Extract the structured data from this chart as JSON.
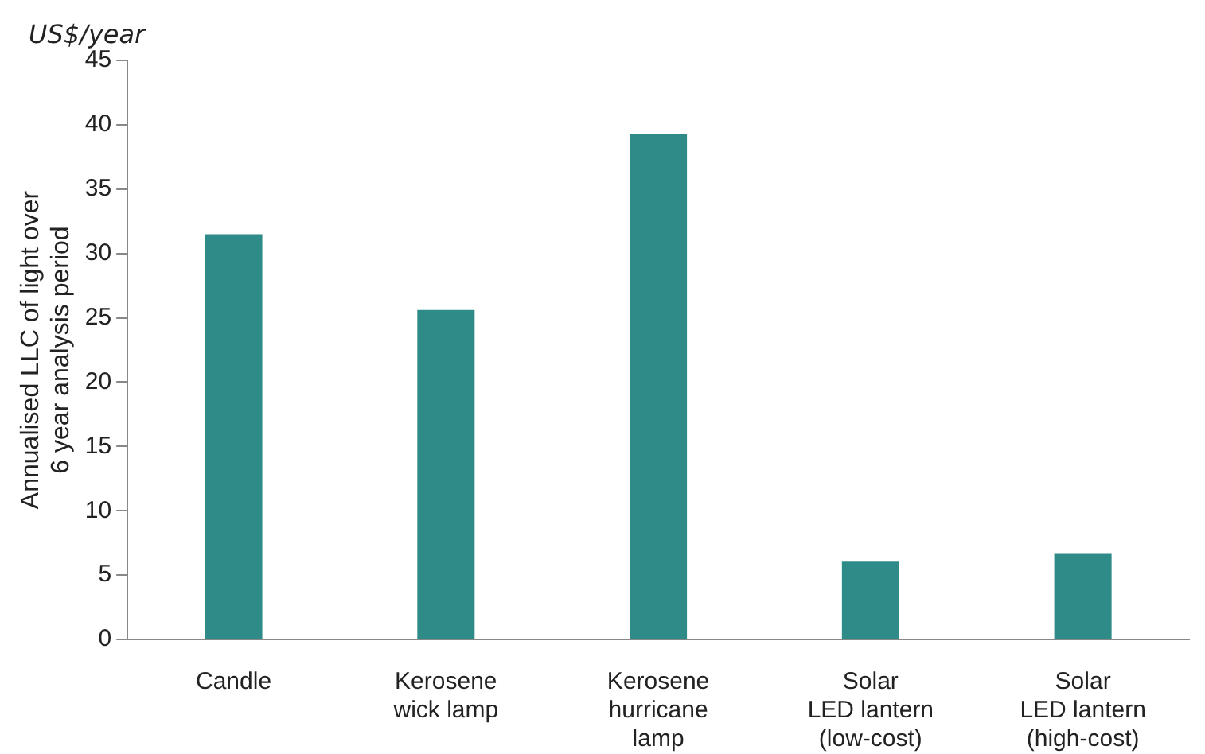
{
  "chart_data": {
    "type": "bar",
    "ylabel": "Annualised LLC of light over\n6 year analysis period",
    "annotations": [
      "US$/year"
    ],
    "categories": [
      "Candle",
      "Kerosene\nwick lamp",
      "Kerosene\nhurricane\nlamp",
      "Solar\nLED lantern\n(low-cost)",
      "Solar\nLED lantern\n(high-cost)"
    ],
    "values": [
      31.5,
      25.6,
      39.3,
      6.1,
      6.7
    ],
    "color": "#2e8b88",
    "ylim": [
      0,
      45
    ],
    "yticks": [
      0,
      5,
      10,
      15,
      20,
      25,
      30,
      35,
      40,
      45
    ],
    "grid": false,
    "legend": false
  }
}
